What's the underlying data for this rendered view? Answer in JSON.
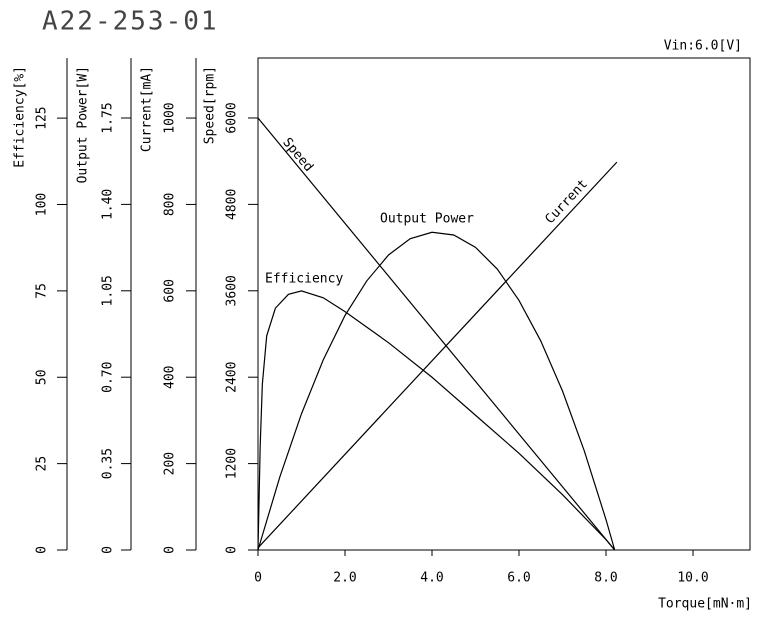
{
  "chart_data": {
    "type": "line",
    "title": "A22-253-01",
    "subtitle": "Vin:6.0[V]",
    "xlabel": "Torque[mN·m]",
    "xlim": [
      0,
      11.31
    ],
    "xticks": [
      0,
      {
        "value": 2,
        "label": "2.0"
      },
      {
        "value": 4,
        "label": "4.0"
      },
      {
        "value": 6,
        "label": "6.0"
      },
      {
        "value": 8,
        "label": "8.0"
      },
      {
        "value": 10,
        "label": "10.0"
      }
    ],
    "ylabel": "Speed[rpm]",
    "ylim": [
      0,
      6833
    ],
    "yticks": [
      0,
      1200,
      2400,
      3600,
      4800,
      6000
    ],
    "y2label": "Current[mA]",
    "y2lim": [
      0,
      1139
    ],
    "y2ticks": [
      0,
      200,
      400,
      600,
      800,
      1000
    ],
    "y3label": "Output Power[W]",
    "y3lim": [
      0,
      1.993
    ],
    "y3ticks": [
      0,
      0.35,
      {
        "value": 0.7,
        "label": "0.70"
      },
      1.05,
      {
        "value": 1.4,
        "label": "1.40"
      },
      1.75
    ],
    "y4label": "Efficiency[%]",
    "y4lim": [
      0,
      142.4
    ],
    "y4ticks": [
      0,
      25,
      50,
      75,
      100,
      125
    ],
    "series": [
      {
        "name": "Speed",
        "color": "#000000",
        "axis": "y",
        "x": [
          0,
          8.2
        ],
        "values": [
          6000,
          0
        ]
      },
      {
        "name": "Current",
        "color": "#000000",
        "axis": "y2",
        "x": [
          0,
          8.25
        ],
        "values": [
          5,
          898
        ]
      },
      {
        "name": "Output Power",
        "color": "#000000",
        "axis": "y3",
        "x": [
          0,
          0.5,
          1,
          1.5,
          2,
          2.5,
          3,
          3.5,
          4,
          4.5,
          5,
          5.5,
          6,
          6.5,
          7,
          7.5,
          8,
          8.2
        ],
        "values": [
          0,
          0.295,
          0.552,
          0.77,
          0.95,
          1.09,
          1.195,
          1.261,
          1.287,
          1.276,
          1.226,
          1.138,
          1.011,
          0.847,
          0.644,
          0.402,
          0.123,
          0
        ]
      },
      {
        "name": "Efficiency",
        "color": "#000000",
        "axis": "y4",
        "x": [
          0,
          0.05,
          0.1,
          0.2,
          0.4,
          0.7,
          1,
          1.5,
          2,
          3,
          4,
          5,
          6,
          7,
          8,
          8.2
        ],
        "values": [
          0,
          30,
          48,
          62,
          70,
          74,
          75,
          73,
          69,
          60,
          50,
          39,
          28,
          16,
          3,
          0
        ]
      }
    ]
  }
}
